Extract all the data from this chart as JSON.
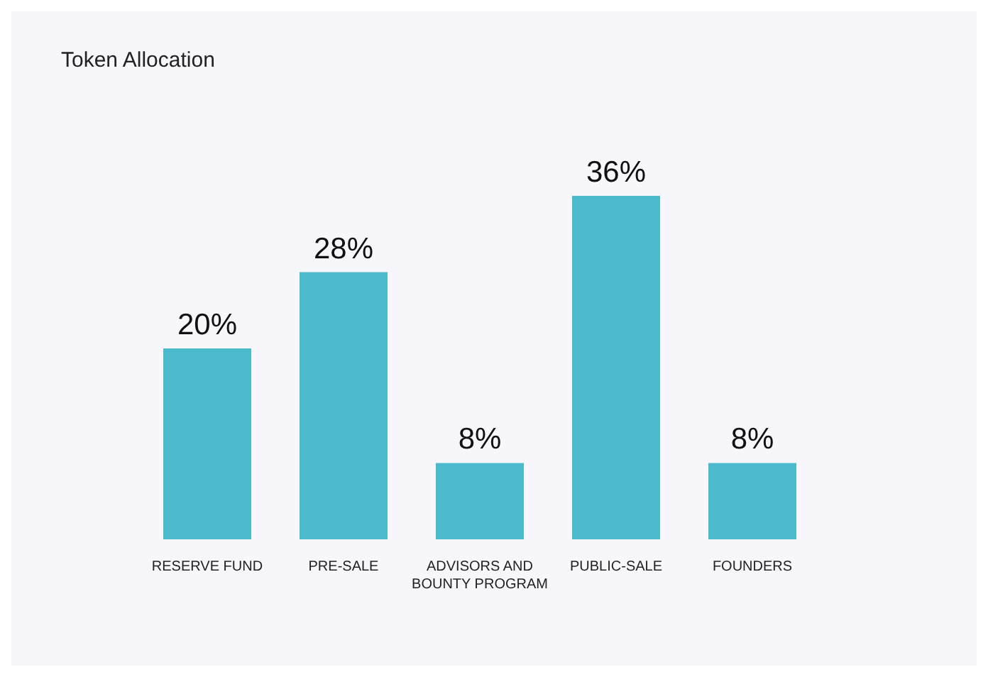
{
  "chart_data": {
    "type": "bar",
    "title": "Token Allocation",
    "categories": [
      "RESERVE FUND",
      "PRE-SALE",
      "ADVISORS AND BOUNTY PROGRAM",
      "PUBLIC-SALE",
      "FOUNDERS"
    ],
    "values": [
      20,
      28,
      8,
      36,
      8
    ],
    "value_labels": [
      "20%",
      "28%",
      "8%",
      "36%",
      "8%"
    ],
    "color": "#4bbacd"
  }
}
